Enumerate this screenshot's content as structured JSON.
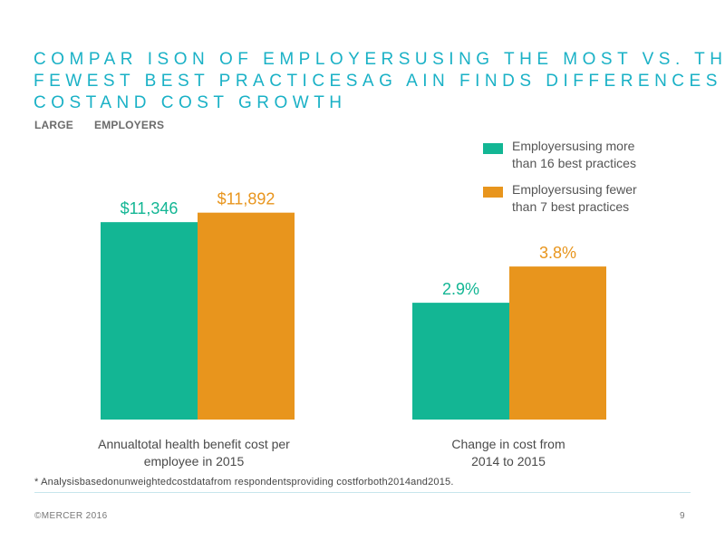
{
  "header": {
    "title_lines": [
      "COMPAR ISON OF EMPLOYERSUSING THE MOST VS. THE",
      "FEWEST BEST PRACTICESAG AIN FINDS DIFFERENCES IN",
      "COSTAND COST GROWTH"
    ],
    "subtitle_left": "LARGE",
    "subtitle_right": "EMPLOYERS"
  },
  "colors": {
    "most_practices": "#13b694",
    "fewest_practices": "#e8951d",
    "title": "#1ab1c6"
  },
  "chart_data": {
    "type": "bar",
    "categories": [
      "Annualtotal health benefit cost per employee in 2015",
      "Change in cost from 2014 to 2015"
    ],
    "category_lines": [
      [
        "Annualtotal health benefit cost per",
        "employee in 2015"
      ],
      [
        "Change in cost from",
        "2014 to 2015"
      ]
    ],
    "series": [
      {
        "name": "Employersusing more than 16 best practices",
        "legend_lines": [
          "Employersusing more",
          "than 16 best practices"
        ],
        "color": "#13b694",
        "values": [
          11346,
          2.9
        ],
        "labels": [
          "$11,346",
          "2.9%"
        ]
      },
      {
        "name": "Employersusing fewer than 7 best practices",
        "legend_lines": [
          "Employersusing fewer",
          "than 7 best practices"
        ],
        "color": "#e8951d",
        "values": [
          11892,
          3.8
        ],
        "labels": [
          "$11,892",
          "3.8%"
        ]
      }
    ],
    "ranges": [
      [
        0,
        12500
      ],
      [
        0,
        5.4
      ]
    ],
    "grid": false,
    "legend_position": "top-right"
  },
  "footer": {
    "note": "* Analysisbasedonunweightedcostdatafrom respondentsproviding costforboth2014and2015.",
    "copyright": "©MERCER 2016",
    "page": "9"
  }
}
